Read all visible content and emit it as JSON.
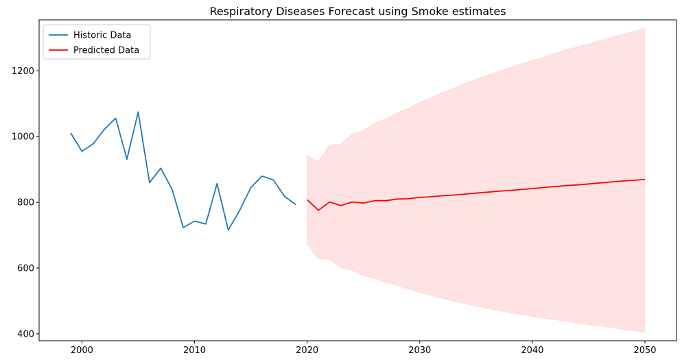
{
  "chart_data": {
    "type": "line",
    "title": "Respiratory Diseases Forecast using Smoke estimates",
    "xlabel": "",
    "ylabel": "",
    "xlim": [
      1996.2,
      2052.8
    ],
    "ylim": [
      379,
      1355
    ],
    "x_ticks": [
      2000,
      2010,
      2020,
      2030,
      2040,
      2050
    ],
    "y_ticks": [
      400,
      600,
      800,
      1000,
      1200
    ],
    "grid": false,
    "legend_position": "upper-left",
    "series": [
      {
        "name": "Historic Data",
        "color": "#1f77b4",
        "x": [
          1999,
          2000,
          2001,
          2002,
          2003,
          2004,
          2005,
          2006,
          2007,
          2008,
          2009,
          2010,
          2011,
          2012,
          2013,
          2014,
          2015,
          2016,
          2017,
          2018,
          2019
        ],
        "y": [
          1011,
          955,
          978,
          1022,
          1056,
          931,
          1075,
          860,
          904,
          840,
          723,
          743,
          734,
          857,
          716,
          775,
          845,
          880,
          868,
          818,
          793
        ]
      },
      {
        "name": "Predicted Data",
        "color": "#ff0000",
        "x": [
          2020,
          2021,
          2022,
          2023,
          2024,
          2025,
          2026,
          2027,
          2028,
          2029,
          2030,
          2031,
          2032,
          2033,
          2034,
          2035,
          2036,
          2037,
          2038,
          2039,
          2040,
          2041,
          2042,
          2043,
          2044,
          2045,
          2046,
          2047,
          2048,
          2049,
          2050
        ],
        "y": [
          808,
          776,
          801,
          790,
          801,
          798,
          805,
          805,
          810,
          811,
          815,
          817,
          820,
          822,
          825,
          828,
          831,
          834,
          836,
          839,
          842,
          845,
          848,
          851,
          853,
          856,
          859,
          862,
          865,
          867,
          870
        ]
      }
    ],
    "confidence_interval": {
      "color": "#ff0000",
      "opacity": 0.11,
      "x": [
        2020,
        2021,
        2022,
        2023,
        2024,
        2025,
        2026,
        2027,
        2028,
        2029,
        2030,
        2031,
        2032,
        2033,
        2034,
        2035,
        2036,
        2037,
        2038,
        2039,
        2040,
        2041,
        2042,
        2043,
        2044,
        2045,
        2046,
        2047,
        2048,
        2049,
        2050
      ],
      "upper": [
        942,
        924,
        975,
        977,
        1008,
        1018,
        1040,
        1054,
        1072,
        1086,
        1104,
        1118,
        1133,
        1147,
        1161,
        1174,
        1186,
        1198,
        1210,
        1221,
        1232,
        1242,
        1253,
        1263,
        1273,
        1282,
        1292,
        1301,
        1311,
        1320,
        1330
      ],
      "lower": [
        674,
        628,
        627,
        601,
        594,
        577,
        569,
        556,
        548,
        536,
        526,
        517,
        508,
        500,
        492,
        485,
        478,
        471,
        465,
        459,
        453,
        448,
        443,
        438,
        433,
        428,
        424,
        419,
        414,
        410,
        405
      ]
    }
  }
}
